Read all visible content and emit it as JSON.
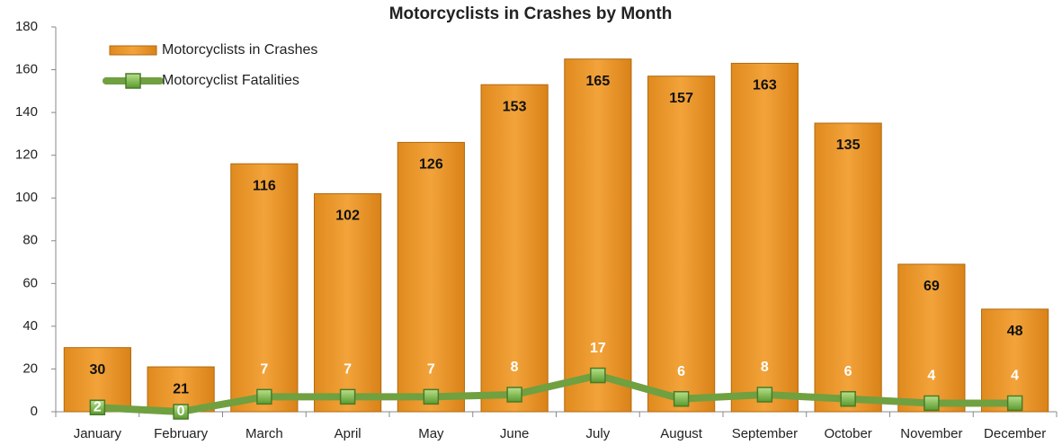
{
  "chart_data": {
    "type": "bar",
    "title": "Motorcyclists in Crashes by Month",
    "categories": [
      "January",
      "February",
      "March",
      "April",
      "May",
      "June",
      "July",
      "August",
      "September",
      "October",
      "November",
      "December"
    ],
    "series": [
      {
        "name": "Motorcyclists in Crashes",
        "type": "bar",
        "color": "#ee9a2e",
        "values": [
          30,
          21,
          116,
          102,
          126,
          153,
          165,
          157,
          163,
          135,
          69,
          48
        ]
      },
      {
        "name": "Motorcyclist Fatalities",
        "type": "line",
        "color": "#70a040",
        "values": [
          2,
          0,
          7,
          7,
          7,
          8,
          17,
          6,
          8,
          6,
          4,
          4
        ]
      }
    ],
    "ylim": [
      0,
      180
    ],
    "yticks": [
      0,
      20,
      40,
      60,
      80,
      100,
      120,
      140,
      160,
      180
    ],
    "grid": false,
    "legend": "top-left"
  }
}
